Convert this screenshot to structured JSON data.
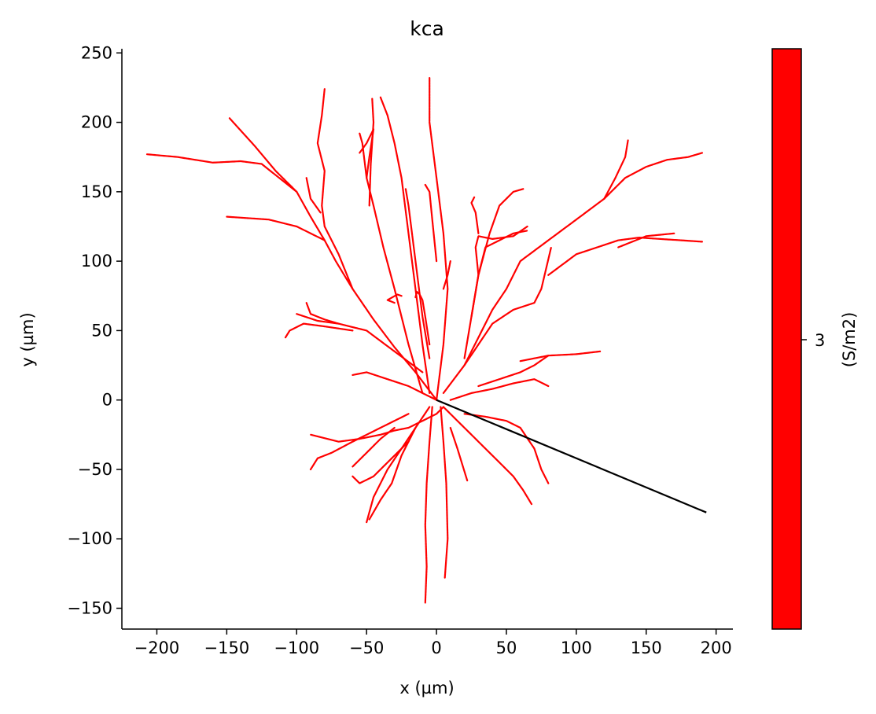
{
  "chart_data": {
    "type": "line",
    "title": "kca",
    "xlabel": "x (µm)",
    "ylabel": "y (µm)",
    "xlim": [
      -225,
      212
    ],
    "ylim": [
      -165,
      253
    ],
    "xticks": [
      -200,
      -150,
      -100,
      -50,
      0,
      50,
      100,
      150,
      200
    ],
    "yticks": [
      -150,
      -100,
      -50,
      0,
      50,
      100,
      150,
      200,
      250
    ],
    "grid": false,
    "colors": {
      "dendrite": "#ff0000",
      "axon": "#000000"
    },
    "colorbar": {
      "label": "(S/m2)",
      "tick": "3",
      "color": "#ff0000"
    },
    "axon": {
      "x": [
        0,
        193
      ],
      "y": [
        0,
        -81
      ]
    },
    "dendrites": [
      {
        "x": [
          0,
          -15,
          -30,
          -45,
          -60,
          -72,
          -80,
          -90,
          -100,
          -115,
          -125,
          -140,
          -160,
          -185,
          -207
        ],
        "y": [
          0,
          20,
          38,
          58,
          80,
          100,
          115,
          132,
          150,
          162,
          170,
          172,
          171,
          175,
          177
        ]
      },
      {
        "x": [
          -100,
          -115,
          -130,
          -148
        ],
        "y": [
          150,
          165,
          183,
          203
        ]
      },
      {
        "x": [
          -80,
          -100,
          -120,
          -150
        ],
        "y": [
          115,
          125,
          130,
          132
        ]
      },
      {
        "x": [
          -60,
          -70,
          -80,
          -82,
          -80,
          -85,
          -82,
          -80
        ],
        "y": [
          80,
          105,
          125,
          140,
          165,
          185,
          205,
          224
        ]
      },
      {
        "x": [
          -83,
          -90,
          -93
        ],
        "y": [
          135,
          145,
          160
        ]
      },
      {
        "x": [
          -10,
          -20,
          -30,
          -38,
          -45,
          -50,
          -53,
          -55
        ],
        "y": [
          5,
          40,
          80,
          110,
          140,
          160,
          185,
          192
        ]
      },
      {
        "x": [
          -50,
          -48,
          -45,
          -50,
          -55
        ],
        "y": [
          160,
          175,
          195,
          185,
          178
        ]
      },
      {
        "x": [
          -48,
          -47,
          -45,
          -46
        ],
        "y": [
          140,
          170,
          200,
          217
        ]
      },
      {
        "x": [
          -5,
          -10,
          -15,
          -20,
          -25,
          -30,
          -35,
          -40
        ],
        "y": [
          5,
          40,
          80,
          120,
          160,
          185,
          205,
          218
        ]
      },
      {
        "x": [
          -5,
          -10,
          -15,
          -20,
          -22
        ],
        "y": [
          30,
          60,
          100,
          140,
          152
        ]
      },
      {
        "x": [
          -5,
          -8,
          -10,
          -12,
          -14,
          -15
        ],
        "y": [
          40,
          60,
          72,
          76,
          78,
          74
        ]
      },
      {
        "x": [
          -30,
          -35,
          -28,
          -25
        ],
        "y": [
          70,
          72,
          76,
          75
        ]
      },
      {
        "x": [
          0,
          5,
          8,
          5,
          0,
          -5,
          -5
        ],
        "y": [
          0,
          40,
          80,
          120,
          160,
          200,
          232
        ]
      },
      {
        "x": [
          5,
          8,
          10
        ],
        "y": [
          80,
          90,
          100
        ]
      },
      {
        "x": [
          0,
          -3,
          -5,
          -8
        ],
        "y": [
          100,
          130,
          150,
          155
        ]
      },
      {
        "x": [
          -10,
          -30,
          -50,
          -70,
          -85,
          -100
        ],
        "y": [
          20,
          35,
          50,
          55,
          57,
          62
        ]
      },
      {
        "x": [
          -60,
          -80,
          -95,
          -105,
          -108
        ],
        "y": [
          50,
          53,
          55,
          50,
          45
        ]
      },
      {
        "x": [
          -70,
          -80,
          -90,
          -93
        ],
        "y": [
          55,
          58,
          62,
          70
        ]
      },
      {
        "x": [
          5,
          20,
          30,
          40,
          50,
          60,
          80,
          100,
          120,
          135,
          150,
          165,
          180,
          190
        ],
        "y": [
          5,
          25,
          45,
          65,
          80,
          100,
          115,
          130,
          145,
          160,
          168,
          173,
          175,
          178
        ]
      },
      {
        "x": [
          120,
          128,
          135,
          137
        ],
        "y": [
          145,
          160,
          175,
          187
        ]
      },
      {
        "x": [
          80,
          100,
          115,
          130,
          145,
          160,
          175,
          190
        ],
        "y": [
          90,
          105,
          110,
          115,
          117,
          116,
          115,
          114
        ]
      },
      {
        "x": [
          130,
          150,
          170
        ],
        "y": [
          110,
          118,
          120
        ]
      },
      {
        "x": [
          20,
          30,
          40,
          55,
          70,
          75,
          82
        ],
        "y": [
          25,
          40,
          55,
          65,
          70,
          80,
          110
        ]
      },
      {
        "x": [
          20,
          25,
          30,
          35,
          45,
          55,
          65
        ],
        "y": [
          30,
          60,
          90,
          110,
          115,
          120,
          122
        ]
      },
      {
        "x": [
          30,
          28,
          30,
          40,
          55,
          65
        ],
        "y": [
          90,
          110,
          118,
          116,
          118,
          125
        ]
      },
      {
        "x": [
          25,
          30,
          38,
          45,
          55,
          62
        ],
        "y": [
          60,
          90,
          120,
          140,
          150,
          152
        ]
      },
      {
        "x": [
          30,
          28,
          25,
          27
        ],
        "y": [
          120,
          135,
          142,
          146
        ]
      },
      {
        "x": [
          5,
          0,
          -10,
          -20,
          -30,
          -40,
          -55,
          -70,
          -90
        ],
        "y": [
          -5,
          -10,
          -15,
          -20,
          -22,
          -25,
          -28,
          -30,
          -25
        ]
      },
      {
        "x": [
          -20,
          -40,
          -60,
          -75,
          -85,
          -90
        ],
        "y": [
          -10,
          -20,
          -30,
          -38,
          -42,
          -50
        ]
      },
      {
        "x": [
          -30,
          -40,
          -50,
          -60
        ],
        "y": [
          -20,
          -28,
          -38,
          -48
        ]
      },
      {
        "x": [
          -5,
          -15,
          -25,
          -35,
          -45,
          -50
        ],
        "y": [
          -5,
          -20,
          -35,
          -50,
          -70,
          -88
        ]
      },
      {
        "x": [
          -15,
          -25,
          -32,
          -40,
          -48
        ],
        "y": [
          -20,
          -40,
          -60,
          -72,
          -86
        ]
      },
      {
        "x": [
          -3,
          -5,
          -7,
          -8,
          -7,
          -8
        ],
        "y": [
          -5,
          -30,
          -60,
          -90,
          -120,
          -146
        ]
      },
      {
        "x": [
          3,
          5,
          7,
          8,
          6
        ],
        "y": [
          -5,
          -30,
          -60,
          -100,
          -128
        ]
      },
      {
        "x": [
          5,
          15,
          25,
          35,
          45,
          55,
          62,
          68
        ],
        "y": [
          -5,
          -15,
          -25,
          -35,
          -45,
          -55,
          -65,
          -75
        ]
      },
      {
        "x": [
          20,
          35,
          50,
          60,
          70,
          75,
          80
        ],
        "y": [
          -10,
          -12,
          -15,
          -20,
          -35,
          -50,
          -60
        ]
      },
      {
        "x": [
          10,
          25,
          40,
          55,
          70,
          80
        ],
        "y": [
          0,
          5,
          8,
          12,
          15,
          10
        ]
      },
      {
        "x": [
          30,
          45,
          60,
          70,
          80
        ],
        "y": [
          10,
          15,
          20,
          25,
          32
        ]
      },
      {
        "x": [
          0,
          -10,
          -20,
          -35,
          -50,
          -60
        ],
        "y": [
          0,
          5,
          10,
          15,
          20,
          18
        ]
      },
      {
        "x": [
          60,
          80,
          100,
          117
        ],
        "y": [
          28,
          32,
          33,
          35
        ]
      },
      {
        "x": [
          -20,
          -35,
          -45,
          -55,
          -60
        ],
        "y": [
          -30,
          -45,
          -55,
          -60,
          -55
        ]
      },
      {
        "x": [
          10,
          15,
          18,
          22
        ],
        "y": [
          -20,
          -35,
          -45,
          -58
        ]
      }
    ]
  }
}
